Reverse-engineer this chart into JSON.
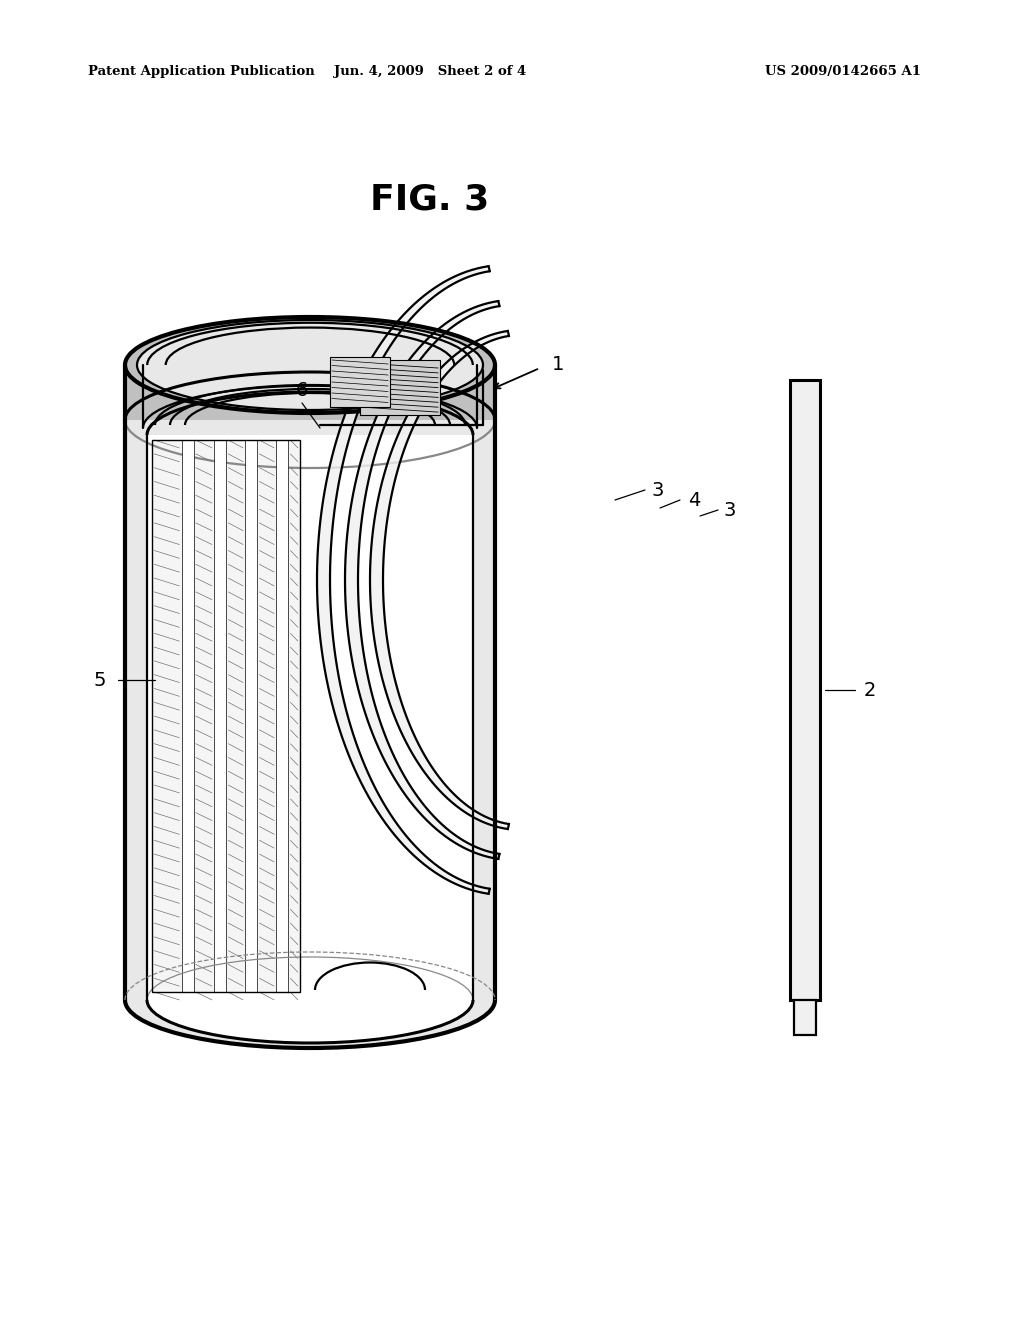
{
  "bg_color": "#ffffff",
  "line_color": "#000000",
  "header_left": "Patent Application Publication",
  "header_mid": "Jun. 4, 2009   Sheet 2 of 4",
  "header_right": "US 2009/0142665 A1",
  "fig_label": "FIG. 3",
  "lw_main": 1.6,
  "lw_thick": 2.2,
  "lw_thin": 0.9,
  "lw_vthick": 3.0,
  "gray_fill": "#e8e8e8",
  "gray_mid": "#c0c0c0",
  "gray_dark": "#888888",
  "white": "#ffffff"
}
